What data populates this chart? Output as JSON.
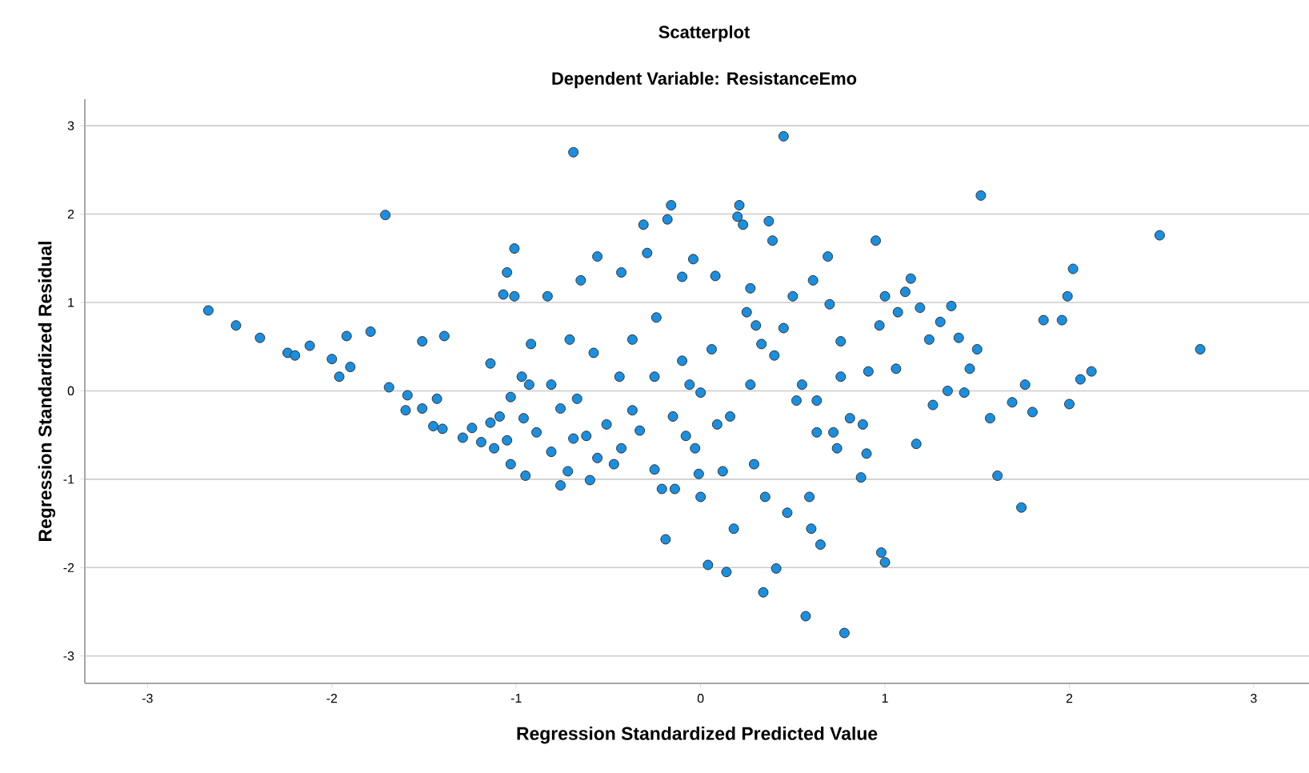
{
  "chart_data": {
    "type": "scatter",
    "title": "Scatterplot",
    "subtitle": "Dependent Variable: ResistanceEmo",
    "xlabel": "Regression Standardized Predicted Value",
    "ylabel": "Regression Standardized Residual",
    "xlim": [
      -3.34,
      3.3
    ],
    "ylim": [
      -3.31,
      3.3
    ],
    "xticks": [
      -3,
      -2,
      -1,
      0,
      1,
      2,
      3
    ],
    "yticks": [
      -3,
      -2,
      -1,
      0,
      1,
      2,
      3
    ],
    "grid": "y",
    "marker": "circle",
    "color": "#1a8fe0",
    "x": [
      -2.67,
      -2.52,
      -2.39,
      -2.24,
      -2.2,
      -2.12,
      -2.0,
      -1.96,
      -1.92,
      -1.9,
      -1.79,
      -1.71,
      -1.69,
      -1.59,
      -1.6,
      -1.51,
      -1.51,
      -1.43,
      -1.39,
      -1.45,
      -1.4,
      -1.29,
      -1.24,
      -1.19,
      -1.14,
      -1.12,
      -1.09,
      -1.14,
      -1.07,
      -1.05,
      -1.01,
      -1.01,
      -1.03,
      -0.97,
      -0.93,
      -0.96,
      -1.05,
      -1.03,
      -0.95,
      -0.89,
      -0.92,
      -0.83,
      -0.81,
      -0.81,
      -0.76,
      -0.76,
      -0.72,
      -0.71,
      -0.67,
      -0.69,
      -0.69,
      -0.65,
      -0.62,
      -0.6,
      -0.56,
      -0.58,
      -0.56,
      -0.51,
      -0.47,
      -0.43,
      -0.44,
      -0.43,
      -0.37,
      -0.37,
      -0.33,
      -0.31,
      -0.29,
      -0.25,
      -0.25,
      -0.24,
      -0.21,
      -0.19,
      -0.18,
      -0.16,
      -0.15,
      -0.14,
      -0.1,
      -0.1,
      -0.08,
      -0.06,
      -0.04,
      -0.03,
      -0.01,
      0.0,
      0.0,
      0.04,
      0.06,
      0.08,
      0.09,
      0.12,
      0.14,
      0.16,
      0.18,
      0.2,
      0.21,
      0.23,
      0.25,
      0.27,
      0.27,
      0.29,
      0.3,
      0.33,
      0.34,
      0.35,
      0.37,
      0.39,
      0.4,
      0.41,
      0.45,
      0.45,
      0.47,
      0.5,
      0.52,
      0.55,
      0.57,
      0.59,
      0.6,
      0.61,
      0.63,
      0.63,
      0.65,
      0.69,
      0.7,
      0.72,
      0.74,
      0.76,
      0.76,
      0.78,
      0.81,
      0.87,
      0.88,
      0.9,
      0.91,
      0.95,
      0.97,
      0.98,
      1.0,
      1.0,
      1.06,
      1.07,
      1.11,
      1.14,
      1.17,
      1.19,
      1.24,
      1.26,
      1.3,
      1.34,
      1.36,
      1.4,
      1.43,
      1.46,
      1.5,
      1.57,
      1.52,
      1.61,
      1.69,
      1.74,
      1.76,
      1.8,
      1.86,
      1.96,
      1.99,
      2.02,
      2.0,
      2.06,
      2.12,
      2.49,
      2.71
    ],
    "values": [
      0.91,
      0.74,
      0.6,
      0.43,
      0.4,
      0.51,
      0.36,
      0.16,
      0.62,
      0.27,
      0.67,
      1.99,
      0.04,
      -0.05,
      -0.22,
      -0.2,
      0.56,
      -0.09,
      0.62,
      -0.4,
      -0.43,
      -0.53,
      -0.42,
      -0.58,
      -0.36,
      -0.65,
      -0.29,
      0.31,
      1.09,
      1.34,
      1.61,
      1.07,
      -0.07,
      0.16,
      0.07,
      -0.31,
      -0.56,
      -0.83,
      -0.96,
      -0.47,
      0.53,
      1.07,
      0.07,
      -0.69,
      -0.2,
      -1.07,
      -0.91,
      0.58,
      -0.09,
      -0.54,
      2.7,
      1.25,
      -0.51,
      -1.01,
      -0.76,
      0.43,
      1.52,
      -0.38,
      -0.83,
      -0.65,
      0.16,
      1.34,
      -0.22,
      0.58,
      -0.45,
      1.88,
      1.56,
      0.16,
      -0.89,
      0.83,
      -1.11,
      -1.68,
      1.94,
      2.1,
      -0.29,
      -1.11,
      0.34,
      1.29,
      -0.51,
      0.07,
      1.49,
      -0.65,
      -0.94,
      -0.02,
      -1.2,
      -1.97,
      0.47,
      1.3,
      -0.38,
      -0.91,
      -2.05,
      -0.29,
      -1.56,
      1.97,
      2.1,
      1.88,
      0.89,
      1.16,
      0.07,
      -0.83,
      0.74,
      0.53,
      -2.28,
      -1.2,
      1.92,
      1.7,
      0.4,
      -2.01,
      2.88,
      0.71,
      -1.38,
      1.07,
      -0.11,
      0.07,
      -2.55,
      -1.2,
      -1.56,
      1.25,
      -0.11,
      -0.47,
      -1.74,
      1.52,
      0.98,
      -0.47,
      -0.65,
      0.56,
      0.16,
      -2.74,
      -0.31,
      -0.98,
      -0.38,
      -0.71,
      0.22,
      1.7,
      0.74,
      -1.83,
      1.07,
      -1.94,
      0.25,
      0.89,
      1.12,
      1.27,
      -0.6,
      0.94,
      0.58,
      -0.16,
      0.78,
      0.0,
      0.96,
      0.6,
      -0.02,
      0.25,
      0.47,
      -0.31,
      2.21,
      -0.96,
      -0.13,
      -1.32,
      0.07,
      -0.24,
      0.8,
      0.8,
      1.07,
      1.38,
      -0.15,
      0.13,
      0.22,
      1.76,
      0.47
    ]
  }
}
